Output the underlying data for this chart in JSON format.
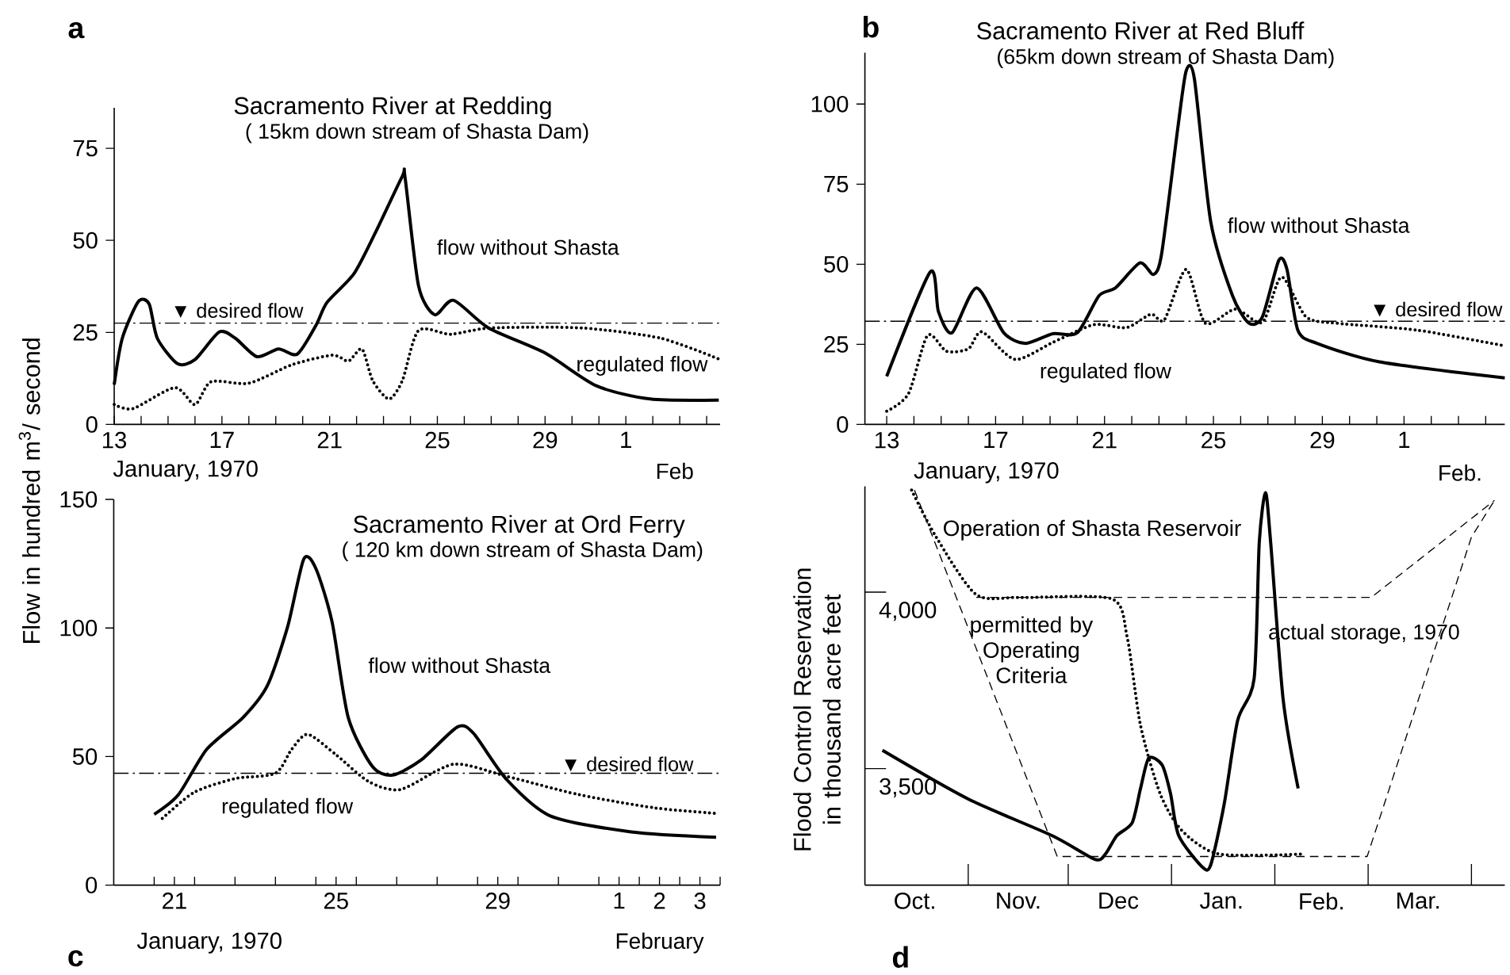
{
  "chart_data": [
    {
      "type": "line",
      "title": "Sacramento River at Redding",
      "subtitle": "( 15km  down stream of Shasta  Dam)",
      "xlabel": "January, 1970",
      "ylabel": "Flow in hundred  m$^{3}$/ second",
      "annotations": [
        "a",
        "Feb"
      ],
      "xlim": [
        "1970-01-13",
        "1970-02-04T12:00"
      ],
      "ylim": [
        0,
        86
      ],
      "yticks": [
        0,
        25,
        50,
        75
      ],
      "xticks": [
        {
          "value": "1970-01-13",
          "label": "13"
        },
        {
          "value": "1970-01-14",
          "label": null
        },
        {
          "value": "1970-01-15",
          "label": null
        },
        {
          "value": "1970-01-16",
          "label": null
        },
        {
          "value": "1970-01-17",
          "label": "17"
        },
        {
          "value": "1970-01-18",
          "label": null
        },
        {
          "value": "1970-01-19",
          "label": null
        },
        {
          "value": "1970-01-20",
          "label": null
        },
        {
          "value": "1970-01-21",
          "label": "21"
        },
        {
          "value": "1970-01-22",
          "label": null
        },
        {
          "value": "1970-01-23",
          "label": null
        },
        {
          "value": "1970-01-24",
          "label": null
        },
        {
          "value": "1970-01-25",
          "label": "25"
        },
        {
          "value": "1970-01-26",
          "label": null
        },
        {
          "value": "1970-01-27",
          "label": null
        },
        {
          "value": "1970-01-28",
          "label": null
        },
        {
          "value": "1970-01-29",
          "label": "29"
        },
        {
          "value": "1970-01-30",
          "label": null
        },
        {
          "value": "1970-01-31",
          "label": null
        },
        {
          "value": "1970-02-01",
          "label": "1"
        },
        {
          "value": "1970-02-02",
          "label": null
        },
        {
          "value": "1970-02-03",
          "label": null
        },
        {
          "value": "1970-02-04",
          "label": null
        }
      ],
      "series": [
        {
          "name": "flow without Shasta",
          "color": "#000000",
          "line_style": "solid",
          "x": [
            "1970-01-13",
            "1970-01-13T07:12",
            "1970-01-13T21:36",
            "1970-01-14T07:12",
            "1970-01-14T14:24",
            "1970-01-15T08:24",
            "1970-01-16",
            "1970-01-16T21:36",
            "1970-01-17T12:00",
            "1970-01-18T07:12",
            "1970-01-19T02:24",
            "1970-01-19T19:12",
            "1970-01-20T12:00",
            "1970-01-20T21:36",
            "1970-01-21T21:36",
            "1970-01-22T16:48",
            "1970-01-23T16:48",
            "1970-01-23T19:12",
            "1970-01-24T07:12",
            "1970-01-24T21:36",
            "1970-01-25T14:24",
            "1970-01-26T21:36",
            "1970-01-29",
            "1970-01-30T21:36",
            "1970-02-01T21:36",
            "1970-02-04T10:48"
          ],
          "values": [
            10.8,
            23.4,
            33.4,
            32.7,
            23.4,
            16.5,
            17.6,
            25.1,
            23.4,
            18.4,
            20.5,
            19.1,
            27.0,
            33.1,
            40.9,
            52.1,
            67.4,
            67.1,
            37.7,
            29.8,
            33.7,
            26.2,
            19.4,
            10.5,
            6.9,
            6.6
          ]
        },
        {
          "name": "regulated flow",
          "color": "#000000",
          "line_style": "dotted",
          "x": [
            "1970-01-13",
            "1970-01-13T16:48",
            "1970-01-15T06:00",
            "1970-01-16",
            "1970-01-16T14:24",
            "1970-01-18",
            "1970-01-19T14:24",
            "1970-01-21T02:24",
            "1970-01-21T16:48",
            "1970-01-22T04:48",
            "1970-01-22T14:24",
            "1970-01-23T04:48",
            "1970-01-23T16:48",
            "1970-01-24T07:12",
            "1970-01-25T12:00",
            "1970-01-27",
            "1970-01-30T08:24",
            "1970-02-02T07:12",
            "1970-02-04T12:00"
          ],
          "values": [
            5.4,
            4.3,
            10.0,
            5.4,
            11.6,
            11.2,
            16.2,
            18.8,
            17.2,
            20.5,
            11.9,
            6.9,
            11.9,
            25.5,
            24.5,
            26.2,
            26.2,
            23.4,
            17.6
          ]
        }
      ],
      "ref_lines": [
        {
          "axis": "y",
          "value": 27.5,
          "label": "▼ desired flow",
          "line_style": "dashed"
        }
      ]
    },
    {
      "type": "line",
      "title": "Sacramento River at Red Bluff",
      "subtitle": "(65km  down stream  of  Shasta Dam)",
      "xlabel": "January, 1970",
      "annotations": [
        "b",
        "Feb."
      ],
      "xlim": [
        "1970-01-12T04:48",
        "1970-02-04T16:48"
      ],
      "ylim": [
        0,
        116
      ],
      "yticks": [
        0,
        25,
        50,
        75,
        100
      ],
      "xticks": [
        {
          "value": "1970-01-13",
          "label": "13"
        },
        {
          "value": "1970-01-14",
          "label": null
        },
        {
          "value": "1970-01-15",
          "label": null
        },
        {
          "value": "1970-01-16",
          "label": null
        },
        {
          "value": "1970-01-17",
          "label": "17"
        },
        {
          "value": "1970-01-18",
          "label": null
        },
        {
          "value": "1970-01-19",
          "label": null
        },
        {
          "value": "1970-01-20",
          "label": null
        },
        {
          "value": "1970-01-21",
          "label": "21"
        },
        {
          "value": "1970-01-22",
          "label": null
        },
        {
          "value": "1970-01-23",
          "label": null
        },
        {
          "value": "1970-01-24",
          "label": null
        },
        {
          "value": "1970-01-25",
          "label": "25"
        },
        {
          "value": "1970-01-26",
          "label": null
        },
        {
          "value": "1970-01-27",
          "label": null
        },
        {
          "value": "1970-01-28",
          "label": null
        },
        {
          "value": "1970-01-29",
          "label": "29"
        },
        {
          "value": "1970-01-30",
          "label": null
        },
        {
          "value": "1970-01-31",
          "label": null
        },
        {
          "value": "1970-02-01",
          "label": "1"
        },
        {
          "value": "1970-02-02",
          "label": null
        },
        {
          "value": "1970-02-03",
          "label": null
        },
        {
          "value": "1970-02-04",
          "label": null
        }
      ],
      "series": [
        {
          "name": "flow without Shasta",
          "color": "#000000",
          "line_style": "solid",
          "x": [
            "1970-01-13",
            "1970-01-14T14:24",
            "1970-01-14T21:36",
            "1970-01-15T09:36",
            "1970-01-16T07:12",
            "1970-01-17T07:12",
            "1970-01-18T02:24",
            "1970-01-19T02:24",
            "1970-01-20",
            "1970-01-20T19:12",
            "1970-01-21T09:36",
            "1970-01-22T07:12",
            "1970-01-22T19:12",
            "1970-01-23T02:24",
            "1970-01-23T16:48",
            "1970-01-24",
            "1970-01-24T07:12",
            "1970-01-24T21:36",
            "1970-01-25T16:48",
            "1970-01-26T07:12",
            "1970-01-26T19:12",
            "1970-01-27T09:36",
            "1970-01-27T16:48",
            "1970-01-28T02:24",
            "1970-01-28T19:12",
            "1970-01-31T02:24",
            "1970-02-04T16:48"
          ],
          "values": [
            15.0,
            47.6,
            35.2,
            28.6,
            42.6,
            28.6,
            25.3,
            28.3,
            28.6,
            40.2,
            42.6,
            50.4,
            46.8,
            53.4,
            93.1,
            110.4,
            107.9,
            63.3,
            40.2,
            31.6,
            33.6,
            51.2,
            48.4,
            29.4,
            25.3,
            19.5,
            14.5
          ]
        },
        {
          "name": "regulated flow",
          "color": "#000000",
          "line_style": "dotted",
          "x": [
            "1970-01-13",
            "1970-01-13T19:12",
            "1970-01-14T12:00",
            "1970-01-15T04:48",
            "1970-01-16",
            "1970-01-16T12:00",
            "1970-01-17T16:48",
            "1970-01-19T02:24",
            "1970-01-20T14:24",
            "1970-01-21T19:12",
            "1970-01-22T16:48",
            "1970-01-23T04:48",
            "1970-01-24",
            "1970-01-24T16:48",
            "1970-01-25T19:12",
            "1970-01-26T19:12",
            "1970-01-27T12:00",
            "1970-01-28T09:36",
            "1970-01-29T12:00",
            "1970-02-01T12:00",
            "1970-02-04T16:48"
          ],
          "values": [
            4.1,
            9.6,
            27.8,
            22.8,
            23.6,
            28.9,
            20.3,
            25.6,
            31.1,
            30.2,
            34.4,
            32.7,
            48.4,
            31.6,
            36.0,
            31.9,
            46.0,
            33.6,
            31.6,
            29.4,
            24.5
          ]
        }
      ],
      "ref_lines": [
        {
          "axis": "y",
          "value": 32.2,
          "label": "▼ desired flow",
          "line_style": "dashed"
        }
      ]
    },
    {
      "type": "line",
      "title": "Sacramento River at Ord Ferry",
      "subtitle": "( 120 km  down stream of Shasta  Dam)",
      "xlabel": "January, 1970",
      "annotations": [
        "c",
        "February"
      ],
      "xlim": [
        "1970-01-20",
        "1970-02-04"
      ],
      "ylim": [
        0,
        150
      ],
      "yticks": [
        0,
        50,
        100,
        150
      ],
      "xticks": [
        {
          "value": "1970-01-21",
          "label": null
        },
        {
          "value": "1970-01-21T12:00",
          "label": "21"
        },
        {
          "value": "1970-01-22",
          "label": null
        },
        {
          "value": "1970-01-23",
          "label": null
        },
        {
          "value": "1970-01-24",
          "label": null
        },
        {
          "value": "1970-01-25",
          "label": null
        },
        {
          "value": "1970-01-25T12:00",
          "label": "25"
        },
        {
          "value": "1970-01-26",
          "label": null
        },
        {
          "value": "1970-01-27",
          "label": null
        },
        {
          "value": "1970-01-28",
          "label": null
        },
        {
          "value": "1970-01-29",
          "label": null
        },
        {
          "value": "1970-01-29T12:00",
          "label": "29"
        },
        {
          "value": "1970-01-30",
          "label": null
        },
        {
          "value": "1970-01-31",
          "label": null
        },
        {
          "value": "1970-02-01",
          "label": null
        },
        {
          "value": "1970-02-01T12:00",
          "label": "1"
        },
        {
          "value": "1970-02-02",
          "label": null
        },
        {
          "value": "1970-02-02T12:00",
          "label": "2"
        },
        {
          "value": "1970-02-03",
          "label": null
        },
        {
          "value": "1970-02-03T12:00",
          "label": "3"
        },
        {
          "value": "1970-02-04",
          "label": null
        }
      ],
      "series": [
        {
          "name": "flow without Shasta",
          "color": "#000000",
          "line_style": "solid",
          "x": [
            "1970-01-21",
            "1970-01-21T14:24",
            "1970-01-22T07:12",
            "1970-01-23T04:48",
            "1970-01-23T19:12",
            "1970-01-24T07:12",
            "1970-01-24T16:48",
            "1970-01-25",
            "1970-01-25T09:36",
            "1970-01-25T19:12",
            "1970-01-26T09:36",
            "1970-01-26T21:36",
            "1970-01-27T14:24",
            "1970-01-28T12:00",
            "1970-01-28T21:36",
            "1970-01-29T16:48",
            "1970-01-30T19:12",
            "1970-02-01T19:12",
            "1970-02-03T21:36"
          ],
          "values": [
            27.5,
            35.2,
            52.8,
            65.2,
            77.6,
            100.4,
            126.8,
            123.1,
            102.4,
            65.2,
            46.1,
            42.8,
            48.6,
            61.5,
            59.0,
            41.4,
            26.9,
            20.7,
            18.6
          ]
        },
        {
          "name": "regulated flow",
          "color": "#000000",
          "line_style": "dotted",
          "x": [
            "1970-01-21T04:48",
            "1970-01-22",
            "1970-01-23",
            "1970-01-24",
            "1970-01-24T09:36",
            "1970-01-24T19:12",
            "1970-01-25T12:00",
            "1970-01-26T07:12",
            "1970-01-27T02:24",
            "1970-01-28T09:36",
            "1970-01-29T16:48",
            "1970-01-31T12:00",
            "1970-02-02T09:36",
            "1970-02-03T21:36"
          ],
          "values": [
            25.9,
            36.2,
            41.4,
            43.5,
            52.8,
            58.6,
            50.7,
            40.3,
            37.2,
            47.0,
            42.4,
            35.2,
            30.0,
            27.9
          ]
        }
      ],
      "ref_lines": [
        {
          "axis": "y",
          "value": 43.5,
          "label": "▼ desired flow",
          "line_style": "dashed"
        }
      ]
    },
    {
      "type": "line",
      "title": "Operation of Shasta  Reservoir",
      "ylabel": "Flood Control  Reservation in thousand acre feet",
      "annotations": [
        "d",
        "permitted by Operating Criteria"
      ],
      "xlim": [
        "1969-10-01",
        "1970-04-11"
      ],
      "ylim": [
        3170,
        4300
      ],
      "yticks": [
        {
          "value": 3500,
          "label": "3,500"
        },
        {
          "value": 4000,
          "label": "4,000"
        }
      ],
      "xticks": [
        {
          "value": "1969-10-16",
          "label": "Oct."
        },
        {
          "value": "1969-11-01",
          "label": null
        },
        {
          "value": "1969-11-16",
          "label": "Nov."
        },
        {
          "value": "1969-12-01",
          "label": null
        },
        {
          "value": "1969-12-16",
          "label": "Dec"
        },
        {
          "value": "1970-01-01",
          "label": null
        },
        {
          "value": "1970-01-16",
          "label": "Jan."
        },
        {
          "value": "1970-02-01",
          "label": null
        },
        {
          "value": "1970-02-15",
          "label": "Feb."
        },
        {
          "value": "1970-03-01",
          "label": null
        },
        {
          "value": "1970-03-16",
          "label": "Mar."
        },
        {
          "value": "1970-04-01",
          "label": null
        }
      ],
      "series": [
        {
          "name": "actual storage, 1970",
          "color": "#000000",
          "line_style": "solid",
          "x": [
            "1969-10-06T06:00",
            "1969-11-01",
            "1969-11-26T05:00",
            "1969-12-09T01:00",
            "1969-12-12T04:00",
            "1969-12-15T14:00",
            "1969-12-20T05:00",
            "1969-12-22T17:00",
            "1969-12-25T04:00",
            "1969-12-29T05:00",
            "1969-12-31T17:00",
            "1970-01-03T04:00",
            "1970-01-10T07:00",
            "1970-01-12T19:00",
            "1970-01-16T19:00",
            "1970-01-20T20:00",
            "1970-01-25T19:00",
            "1970-01-27T08:00",
            "1970-01-29T05:00",
            "1970-01-30T18:00",
            "1970-02-03T12:00",
            "1970-02-08"
          ],
          "values": [
            3552,
            3414,
            3310,
            3243,
            3258,
            3310,
            3347,
            3444,
            3530,
            3510,
            3429,
            3310,
            3221,
            3228,
            3399,
            3636,
            3755,
            4141,
            4282,
            4141,
            3696,
            3444
          ]
        },
        {
          "color": "#000000",
          "line_style": "dotted",
          "x": [
            "1969-10-15",
            "1969-10-22T09:00",
            "1969-11-03T10:00",
            "1969-11-16T22:00",
            "1969-12-14",
            "1969-12-18T16:00",
            "1969-12-22T17:00",
            "1969-12-28T14:00",
            "1970-01-04T02:00",
            "1970-01-15T06:00",
            "1970-02-09T10:00"
          ],
          "values": [
            4289,
            4156,
            3993,
            3985,
            3981,
            3874,
            3622,
            3429,
            3325,
            3258,
            3258
          ]
        },
        {
          "color": "#000000",
          "line_style": "dashed",
          "x": [
            "1969-10-15T21:00",
            "1969-11-27T17:00",
            "1970-02-28T17:00",
            "1970-04-01",
            "1970-04-07T22:00"
          ],
          "values": [
            4289,
            3251,
            3251,
            4156,
            4260
          ]
        },
        {
          "color": "#000000",
          "line_style": "dashed",
          "x": [
            "1969-11-03T10:00",
            "1970-03-01T22:00",
            "1970-04-07T22:00"
          ],
          "values": [
            3985,
            3985,
            4260
          ]
        }
      ]
    }
  ]
}
